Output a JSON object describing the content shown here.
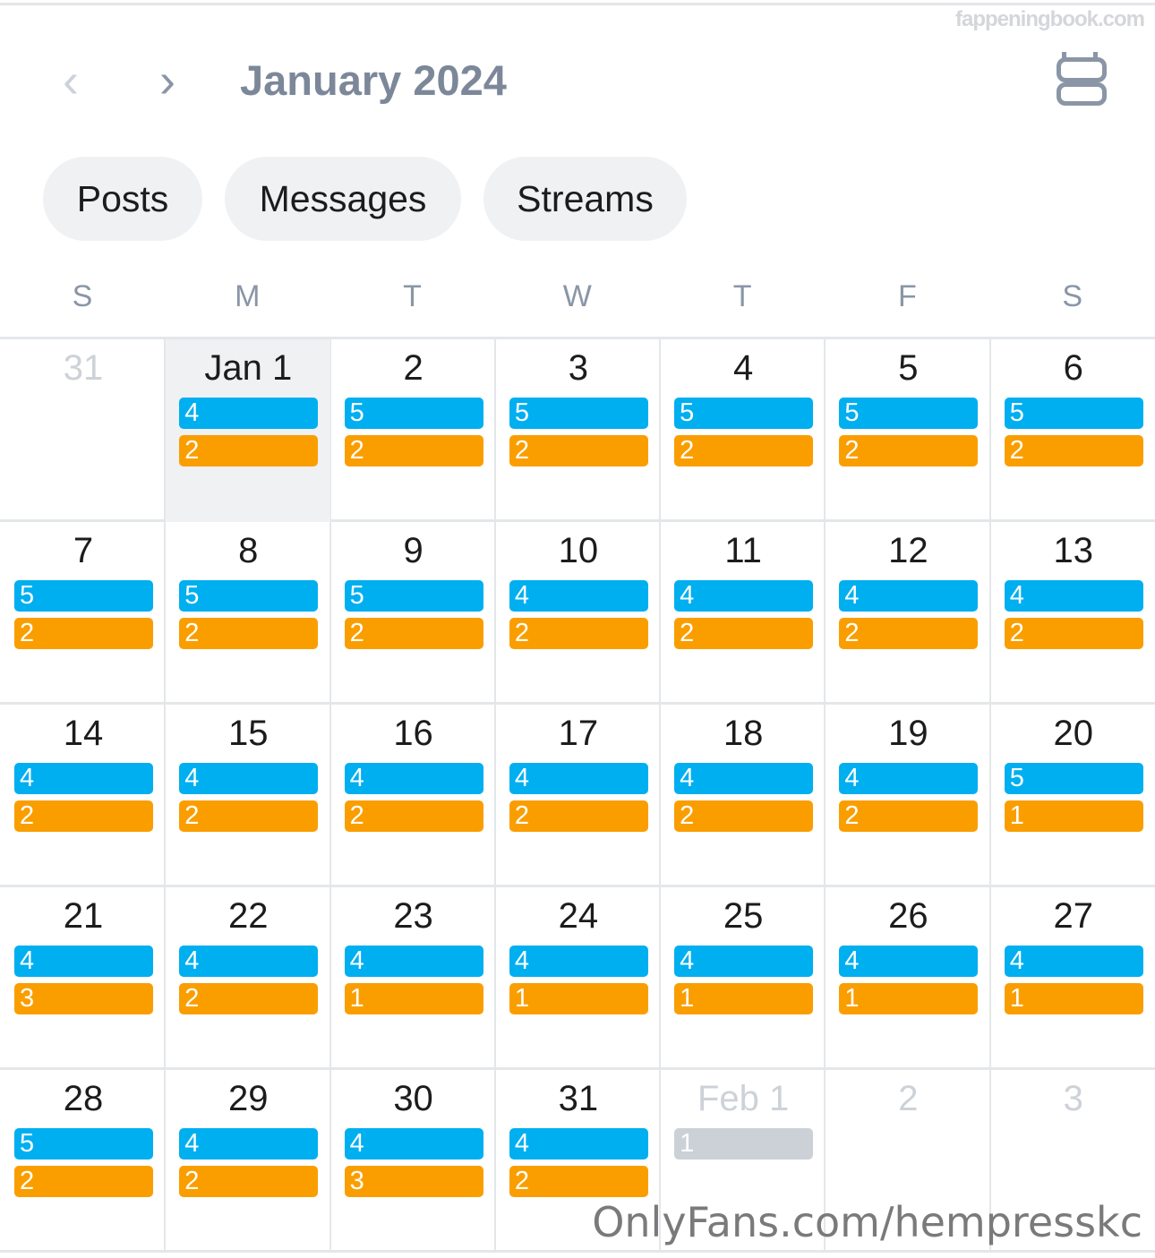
{
  "watermark": "fappeningbook.com",
  "header": {
    "title": "January 2024",
    "prev_icon": "chevron-left-icon",
    "next_icon": "chevron-right-icon",
    "view_icon": "calendar-view-icon"
  },
  "filters": [
    {
      "label": "Posts"
    },
    {
      "label": "Messages"
    },
    {
      "label": "Streams"
    }
  ],
  "weekdays": [
    "S",
    "M",
    "T",
    "W",
    "T",
    "F",
    "S"
  ],
  "colors": {
    "blue": "#00aff0",
    "orange": "#fa9e00",
    "grey": "#ccd1d7",
    "today_bg": "#eff1f3"
  },
  "weeks": [
    [
      {
        "day": "31",
        "other": true
      },
      {
        "day": "Jan 1",
        "today": true,
        "blue": "4",
        "orange": "2"
      },
      {
        "day": "2",
        "blue": "5",
        "orange": "2"
      },
      {
        "day": "3",
        "blue": "5",
        "orange": "2"
      },
      {
        "day": "4",
        "blue": "5",
        "orange": "2"
      },
      {
        "day": "5",
        "blue": "5",
        "orange": "2"
      },
      {
        "day": "6",
        "blue": "5",
        "orange": "2"
      }
    ],
    [
      {
        "day": "7",
        "blue": "5",
        "orange": "2"
      },
      {
        "day": "8",
        "blue": "5",
        "orange": "2"
      },
      {
        "day": "9",
        "blue": "5",
        "orange": "2"
      },
      {
        "day": "10",
        "blue": "4",
        "orange": "2"
      },
      {
        "day": "11",
        "blue": "4",
        "orange": "2"
      },
      {
        "day": "12",
        "blue": "4",
        "orange": "2"
      },
      {
        "day": "13",
        "blue": "4",
        "orange": "2"
      }
    ],
    [
      {
        "day": "14",
        "blue": "4",
        "orange": "2"
      },
      {
        "day": "15",
        "blue": "4",
        "orange": "2"
      },
      {
        "day": "16",
        "blue": "4",
        "orange": "2"
      },
      {
        "day": "17",
        "blue": "4",
        "orange": "2"
      },
      {
        "day": "18",
        "blue": "4",
        "orange": "2"
      },
      {
        "day": "19",
        "blue": "4",
        "orange": "2"
      },
      {
        "day": "20",
        "blue": "5",
        "orange": "1"
      }
    ],
    [
      {
        "day": "21",
        "blue": "4",
        "orange": "3"
      },
      {
        "day": "22",
        "blue": "4",
        "orange": "2"
      },
      {
        "day": "23",
        "blue": "4",
        "orange": "1"
      },
      {
        "day": "24",
        "blue": "4",
        "orange": "1"
      },
      {
        "day": "25",
        "blue": "4",
        "orange": "1"
      },
      {
        "day": "26",
        "blue": "4",
        "orange": "1"
      },
      {
        "day": "27",
        "blue": "4",
        "orange": "1"
      }
    ],
    [
      {
        "day": "28",
        "blue": "5",
        "orange": "2"
      },
      {
        "day": "29",
        "blue": "4",
        "orange": "2"
      },
      {
        "day": "30",
        "blue": "4",
        "orange": "3"
      },
      {
        "day": "31",
        "blue": "4",
        "orange": "2"
      },
      {
        "day": "Feb 1",
        "other": true,
        "grey": "1"
      },
      {
        "day": "2",
        "other": true
      },
      {
        "day": "3",
        "other": true
      }
    ]
  ],
  "footer": "OnlyFans.com/hempresskc"
}
